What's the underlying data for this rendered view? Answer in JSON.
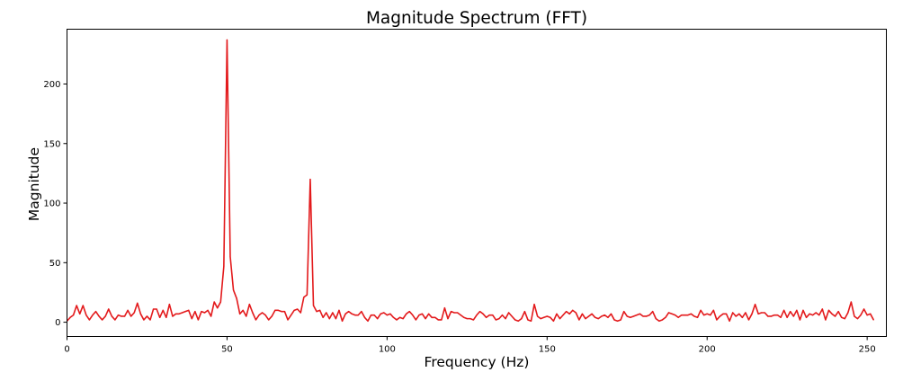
{
  "chart_data": {
    "type": "line",
    "title": "Magnitude Spectrum (FFT)",
    "xlabel": "Frequency (Hz)",
    "ylabel": "Magnitude",
    "xlim": [
      0,
      256
    ],
    "ylim": [
      -12,
      246
    ],
    "x_ticks": [
      0,
      50,
      100,
      150,
      200,
      250
    ],
    "y_ticks": [
      0,
      50,
      100,
      150,
      200
    ],
    "grid": false,
    "legend": "none",
    "line_color": "#e31a1c",
    "x_start": 0,
    "x_step": 1,
    "values": [
      1,
      4,
      6,
      14,
      7,
      14,
      6,
      2,
      6,
      9,
      5,
      2,
      5,
      11,
      5,
      2,
      6,
      5,
      5,
      10,
      5,
      8,
      16,
      7,
      2,
      5,
      2,
      11,
      11,
      4,
      10,
      4,
      15,
      5,
      7,
      7,
      8,
      9,
      10,
      3,
      9,
      2,
      9,
      8,
      10,
      5,
      17,
      12,
      17,
      47,
      237,
      55,
      27,
      20,
      7,
      10,
      5,
      15,
      8,
      2,
      6,
      8,
      6,
      2,
      5,
      10,
      10,
      9,
      9,
      2,
      6,
      10,
      11,
      8,
      21,
      23,
      120,
      14,
      9,
      10,
      4,
      8,
      3,
      8,
      3,
      10,
      1,
      7,
      9,
      7,
      6,
      6,
      9,
      4,
      1,
      6,
      6,
      3,
      7,
      8,
      6,
      7,
      4,
      2,
      4,
      3,
      7,
      9,
      6,
      2,
      6,
      7,
      3,
      7,
      4,
      4,
      2,
      2,
      12,
      3,
      9,
      8,
      8,
      6,
      4,
      3,
      3,
      2,
      6,
      9,
      7,
      4,
      6,
      6,
      2,
      3,
      6,
      3,
      8,
      5,
      2,
      1,
      3,
      9,
      2,
      1,
      15,
      5,
      3,
      4,
      5,
      4,
      1,
      7,
      3,
      6,
      9,
      7,
      10,
      8,
      2,
      7,
      3,
      5,
      7,
      4,
      3,
      5,
      6,
      4,
      7,
      2,
      1,
      2,
      9,
      5,
      4,
      5,
      6,
      7,
      5,
      5,
      6,
      9,
      3,
      1,
      2,
      4,
      8,
      7,
      6,
      4,
      6,
      6,
      6,
      7,
      5,
      4,
      10,
      6,
      7,
      6,
      10,
      2,
      5,
      7,
      7,
      1,
      8,
      5,
      7,
      4,
      8,
      2,
      7,
      15,
      7,
      8,
      8,
      5,
      5,
      6,
      6,
      4,
      10,
      4,
      9,
      5,
      10,
      2,
      10,
      4,
      7,
      6,
      8,
      6,
      11,
      2,
      10,
      7,
      5,
      9,
      4,
      3,
      8,
      17,
      5,
      3,
      6,
      11,
      6,
      7,
      2
    ]
  }
}
